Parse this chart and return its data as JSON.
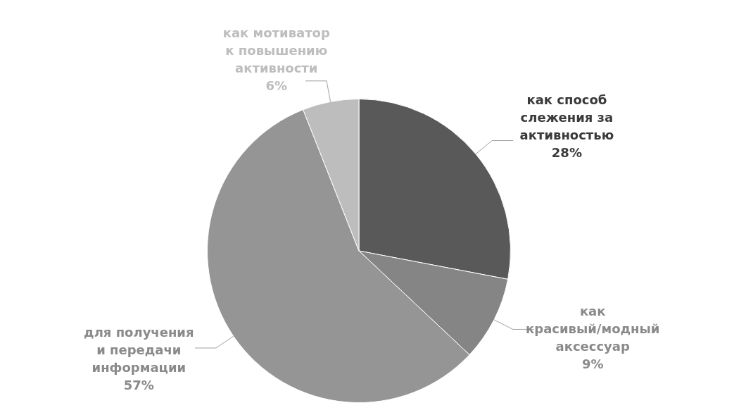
{
  "chart_data": {
    "type": "pie",
    "categories": [
      "как способ слежения за активностью",
      "как красивый/модный аксессуар",
      "для получения и передачи информации",
      "как мотиватор к повышению активности"
    ],
    "values": [
      28,
      9,
      57,
      6
    ],
    "value_labels": [
      "28%",
      "9%",
      "57%",
      "6%"
    ],
    "colors": [
      "#595959",
      "#858585",
      "#959595",
      "#bdbdbd"
    ],
    "legend": false
  }
}
